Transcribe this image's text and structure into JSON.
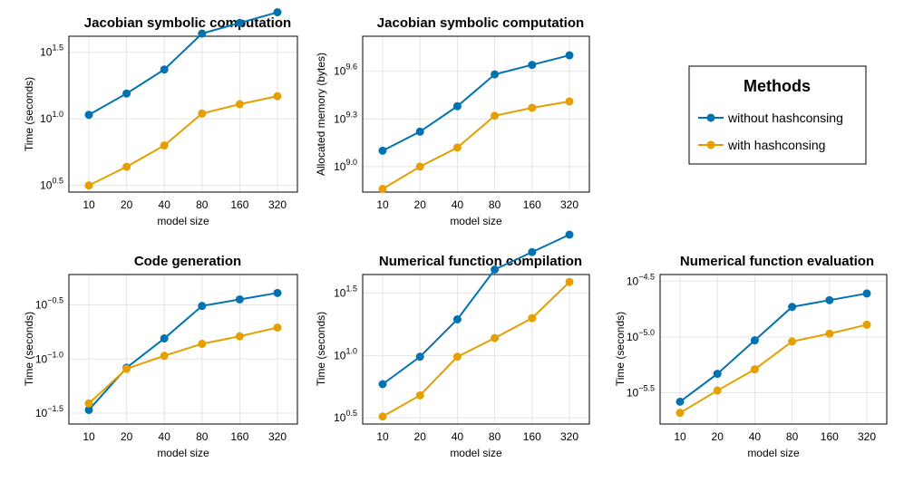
{
  "colors": {
    "without": "#0072B2",
    "with": "#E69F00"
  },
  "legend": {
    "title": "Methods",
    "entries": [
      "without hashconsing",
      "with hashconsing"
    ]
  },
  "chart_data": [
    {
      "type": "line",
      "title": "Jacobian symbolic computation",
      "xlabel": "model size",
      "ylabel": "Time (seconds)",
      "categories": [
        "10",
        "20",
        "40",
        "80",
        "160",
        "320"
      ],
      "y_scale": "log10",
      "y_ticks": [
        "0.5",
        "1.0",
        "1.5"
      ],
      "ylim_exp": [
        0.45,
        1.62
      ],
      "series": [
        {
          "name": "without hashconsing",
          "log10_values": [
            1.03,
            1.19,
            1.37,
            1.64,
            1.72,
            1.8
          ]
        },
        {
          "name": "with hashconsing",
          "log10_values": [
            0.5,
            0.64,
            0.8,
            1.04,
            1.11,
            1.17
          ]
        }
      ]
    },
    {
      "type": "line",
      "title": "Jacobian symbolic computation",
      "xlabel": "model size",
      "ylabel": "Allocated memory (bytes)",
      "categories": [
        "10",
        "20",
        "40",
        "80",
        "160",
        "320"
      ],
      "y_scale": "log10",
      "y_ticks": [
        "9.0",
        "9.3",
        "9.6"
      ],
      "ylim_exp": [
        8.84,
        9.82
      ],
      "series": [
        {
          "name": "without hashconsing",
          "log10_values": [
            9.1,
            9.22,
            9.38,
            9.58,
            9.64,
            9.7
          ]
        },
        {
          "name": "with hashconsing",
          "log10_values": [
            8.86,
            9.0,
            9.12,
            9.32,
            9.37,
            9.41
          ]
        }
      ]
    },
    {
      "type": "line",
      "title": "Code generation",
      "xlabel": "model size",
      "ylabel": "Time (seconds)",
      "categories": [
        "10",
        "20",
        "40",
        "80",
        "160",
        "320"
      ],
      "y_scale": "log10",
      "y_ticks": [
        "-1.5",
        "-1.0",
        "-0.5"
      ],
      "ylim_exp": [
        -1.6,
        -0.22
      ],
      "series": [
        {
          "name": "without hashconsing",
          "log10_values": [
            -1.47,
            -1.08,
            -0.81,
            -0.51,
            -0.45,
            -0.39
          ]
        },
        {
          "name": "with hashconsing",
          "log10_values": [
            -1.41,
            -1.09,
            -0.97,
            -0.86,
            -0.79,
            -0.71
          ]
        }
      ]
    },
    {
      "type": "line",
      "title": "Numerical function compilation",
      "xlabel": "model size",
      "ylabel": "Time (seconds)",
      "categories": [
        "10",
        "20",
        "40",
        "80",
        "160",
        "320"
      ],
      "y_scale": "log10",
      "y_ticks": [
        "0.5",
        "1.0",
        "1.5"
      ],
      "ylim_exp": [
        0.45,
        1.65
      ],
      "series": [
        {
          "name": "without hashconsing",
          "log10_values": [
            0.77,
            0.99,
            1.29,
            1.69,
            1.83,
            1.97
          ]
        },
        {
          "name": "with hashconsing",
          "log10_values": [
            0.51,
            0.68,
            0.99,
            1.14,
            1.3,
            1.59
          ]
        }
      ]
    },
    {
      "type": "line",
      "title": "Numerical function evaluation",
      "xlabel": "model size",
      "ylabel": "Time (seconds)",
      "categories": [
        "10",
        "20",
        "40",
        "80",
        "160",
        "320"
      ],
      "y_scale": "log10",
      "y_ticks": [
        "-5.5",
        "-5.0",
        "-4.5"
      ],
      "ylim_exp": [
        -5.78,
        -4.44
      ],
      "series": [
        {
          "name": "without hashconsing",
          "log10_values": [
            -5.58,
            -5.33,
            -5.03,
            -4.73,
            -4.67,
            -4.61
          ]
        },
        {
          "name": "with hashconsing",
          "log10_values": [
            -5.68,
            -5.48,
            -5.29,
            -5.04,
            -4.97,
            -4.89
          ]
        }
      ]
    }
  ]
}
